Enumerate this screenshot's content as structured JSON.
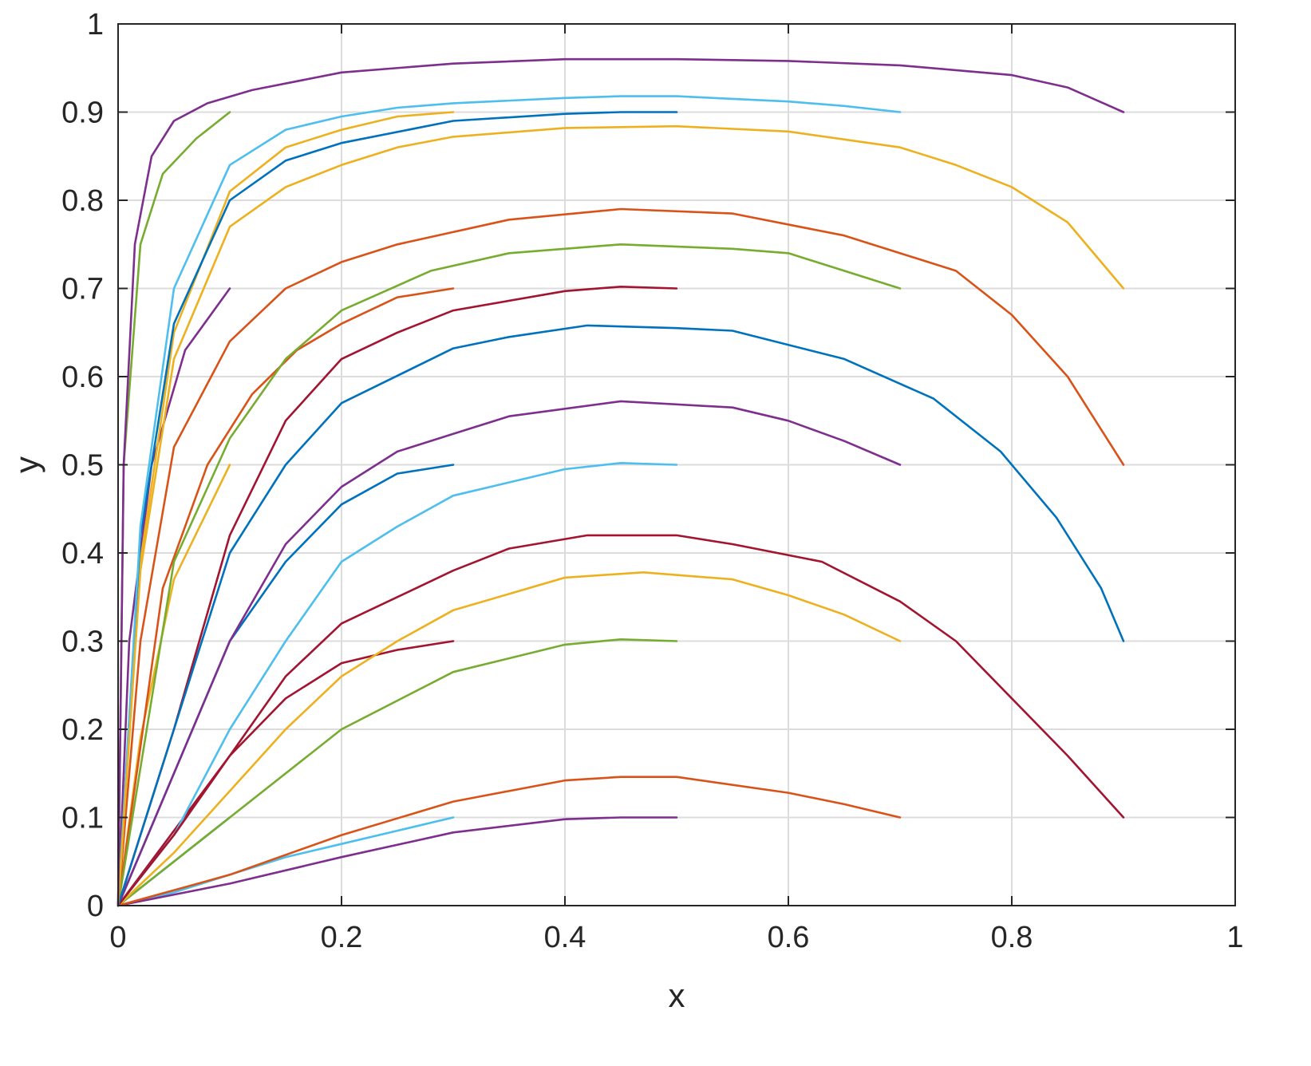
{
  "chart_data": {
    "type": "line",
    "xlabel": "x",
    "ylabel": "y",
    "xlim": [
      0,
      1
    ],
    "ylim": [
      0,
      1
    ],
    "xticks": [
      "0",
      "0.2",
      "0.4",
      "0.6",
      "0.8",
      "1"
    ],
    "yticks": [
      "0",
      "0.1",
      "0.2",
      "0.3",
      "0.4",
      "0.5",
      "0.6",
      "0.7",
      "0.8",
      "0.9",
      "1"
    ],
    "grid": true,
    "box": true,
    "series": [
      {
        "color": "#0072BD",
        "x": [
          0,
          0.1
        ],
        "y": [
          0,
          0.1
        ]
      },
      {
        "color": "#EDB120",
        "x": [
          0,
          0.02,
          0.05,
          0.1
        ],
        "y": [
          0,
          0.19,
          0.37,
          0.5
        ]
      },
      {
        "color": "#7E2F8E",
        "x": [
          0,
          0.01,
          0.03,
          0.06,
          0.1
        ],
        "y": [
          0,
          0.3,
          0.5,
          0.63,
          0.7
        ]
      },
      {
        "color": "#77AC30",
        "x": [
          0,
          0.005,
          0.02,
          0.04,
          0.07,
          0.1
        ],
        "y": [
          0,
          0.5,
          0.75,
          0.83,
          0.87,
          0.9
        ]
      },
      {
        "color": "#4DBEEE",
        "x": [
          0,
          0.05,
          0.1,
          0.15,
          0.2,
          0.25,
          0.3
        ],
        "y": [
          0,
          0.015,
          0.035,
          0.055,
          0.07,
          0.085,
          0.1
        ]
      },
      {
        "color": "#A2142F",
        "x": [
          0,
          0.05,
          0.1,
          0.15,
          0.2,
          0.25,
          0.3
        ],
        "y": [
          0,
          0.085,
          0.17,
          0.235,
          0.275,
          0.29,
          0.3
        ]
      },
      {
        "color": "#0072BD",
        "x": [
          0,
          0.05,
          0.1,
          0.15,
          0.2,
          0.25,
          0.3
        ],
        "y": [
          0,
          0.15,
          0.3,
          0.39,
          0.455,
          0.49,
          0.5
        ]
      },
      {
        "color": "#D95319",
        "x": [
          0,
          0.04,
          0.08,
          0.12,
          0.16,
          0.2,
          0.25,
          0.3
        ],
        "y": [
          0,
          0.36,
          0.5,
          0.58,
          0.63,
          0.66,
          0.69,
          0.7
        ]
      },
      {
        "color": "#EDB120",
        "x": [
          0,
          0.02,
          0.05,
          0.1,
          0.15,
          0.2,
          0.25,
          0.3
        ],
        "y": [
          0,
          0.39,
          0.65,
          0.81,
          0.86,
          0.88,
          0.895,
          0.9
        ]
      },
      {
        "color": "#7E2F8E",
        "x": [
          0,
          0.1,
          0.2,
          0.3,
          0.4,
          0.45,
          0.5
        ],
        "y": [
          0,
          0.025,
          0.055,
          0.083,
          0.098,
          0.1,
          0.1
        ]
      },
      {
        "color": "#77AC30",
        "x": [
          0,
          0.1,
          0.2,
          0.3,
          0.4,
          0.45,
          0.5
        ],
        "y": [
          0,
          0.1,
          0.2,
          0.265,
          0.296,
          0.302,
          0.3
        ]
      },
      {
        "color": "#4DBEEE",
        "x": [
          0,
          0.05,
          0.1,
          0.15,
          0.2,
          0.25,
          0.3,
          0.4,
          0.45,
          0.5
        ],
        "y": [
          0,
          0.08,
          0.2,
          0.3,
          0.39,
          0.43,
          0.465,
          0.495,
          0.502,
          0.5
        ]
      },
      {
        "color": "#A2142F",
        "x": [
          0,
          0.05,
          0.1,
          0.15,
          0.2,
          0.25,
          0.3,
          0.4,
          0.45,
          0.5
        ],
        "y": [
          0,
          0.2,
          0.42,
          0.55,
          0.62,
          0.65,
          0.675,
          0.697,
          0.702,
          0.7
        ]
      },
      {
        "color": "#0072BD",
        "x": [
          0,
          0.02,
          0.05,
          0.1,
          0.15,
          0.2,
          0.3,
          0.4,
          0.45,
          0.5
        ],
        "y": [
          0,
          0.42,
          0.66,
          0.8,
          0.845,
          0.865,
          0.89,
          0.898,
          0.9,
          0.9
        ]
      },
      {
        "color": "#D95319",
        "x": [
          0,
          0.1,
          0.2,
          0.3,
          0.4,
          0.45,
          0.5,
          0.6,
          0.65,
          0.7
        ],
        "y": [
          0,
          0.035,
          0.08,
          0.118,
          0.142,
          0.146,
          0.146,
          0.128,
          0.115,
          0.1
        ]
      },
      {
        "color": "#EDB120",
        "x": [
          0,
          0.05,
          0.1,
          0.15,
          0.2,
          0.25,
          0.3,
          0.4,
          0.47,
          0.55,
          0.6,
          0.65,
          0.7
        ],
        "y": [
          0,
          0.06,
          0.13,
          0.2,
          0.26,
          0.3,
          0.335,
          0.372,
          0.378,
          0.37,
          0.352,
          0.33,
          0.3
        ]
      },
      {
        "color": "#7E2F8E",
        "x": [
          0,
          0.05,
          0.1,
          0.15,
          0.2,
          0.25,
          0.3,
          0.35,
          0.45,
          0.55,
          0.6,
          0.65,
          0.7
        ],
        "y": [
          0,
          0.15,
          0.3,
          0.41,
          0.475,
          0.515,
          0.535,
          0.555,
          0.572,
          0.565,
          0.55,
          0.527,
          0.5
        ]
      },
      {
        "color": "#77AC30",
        "x": [
          0,
          0.05,
          0.1,
          0.15,
          0.2,
          0.28,
          0.35,
          0.45,
          0.55,
          0.6,
          0.65,
          0.7
        ],
        "y": [
          0,
          0.39,
          0.53,
          0.62,
          0.675,
          0.72,
          0.74,
          0.75,
          0.745,
          0.74,
          0.72,
          0.7
        ]
      },
      {
        "color": "#4DBEEE",
        "x": [
          0,
          0.02,
          0.05,
          0.1,
          0.15,
          0.2,
          0.25,
          0.3,
          0.4,
          0.45,
          0.5,
          0.6,
          0.65,
          0.7
        ],
        "y": [
          0,
          0.43,
          0.7,
          0.84,
          0.88,
          0.895,
          0.905,
          0.91,
          0.916,
          0.918,
          0.918,
          0.912,
          0.907,
          0.9
        ]
      },
      {
        "color": "#A2142F",
        "x": [
          0,
          0.05,
          0.1,
          0.15,
          0.2,
          0.3,
          0.35,
          0.42,
          0.5,
          0.55,
          0.63,
          0.7,
          0.75,
          0.8,
          0.85,
          0.9
        ],
        "y": [
          0,
          0.08,
          0.17,
          0.26,
          0.32,
          0.38,
          0.405,
          0.42,
          0.42,
          0.41,
          0.39,
          0.345,
          0.3,
          0.235,
          0.17,
          0.1
        ]
      },
      {
        "color": "#0072BD",
        "x": [
          0,
          0.05,
          0.1,
          0.15,
          0.2,
          0.3,
          0.35,
          0.42,
          0.5,
          0.55,
          0.65,
          0.73,
          0.79,
          0.84,
          0.88,
          0.9
        ],
        "y": [
          0,
          0.2,
          0.4,
          0.5,
          0.57,
          0.632,
          0.645,
          0.658,
          0.655,
          0.652,
          0.62,
          0.575,
          0.515,
          0.44,
          0.36,
          0.3
        ]
      },
      {
        "color": "#D95319",
        "x": [
          0,
          0.02,
          0.05,
          0.1,
          0.15,
          0.2,
          0.25,
          0.35,
          0.45,
          0.55,
          0.65,
          0.75,
          0.8,
          0.85,
          0.88,
          0.9
        ],
        "y": [
          0,
          0.3,
          0.52,
          0.64,
          0.7,
          0.73,
          0.75,
          0.778,
          0.79,
          0.785,
          0.76,
          0.72,
          0.67,
          0.6,
          0.54,
          0.5
        ]
      },
      {
        "color": "#EDB120",
        "x": [
          0,
          0.02,
          0.05,
          0.1,
          0.15,
          0.2,
          0.25,
          0.3,
          0.4,
          0.5,
          0.6,
          0.7,
          0.75,
          0.8,
          0.85,
          0.88,
          0.9
        ],
        "y": [
          0,
          0.38,
          0.62,
          0.77,
          0.815,
          0.84,
          0.86,
          0.872,
          0.882,
          0.884,
          0.878,
          0.86,
          0.84,
          0.815,
          0.775,
          0.73,
          0.7
        ]
      },
      {
        "color": "#7E2F8E",
        "x": [
          0,
          0.005,
          0.015,
          0.03,
          0.05,
          0.08,
          0.12,
          0.2,
          0.3,
          0.4,
          0.5,
          0.6,
          0.7,
          0.8,
          0.85,
          0.9
        ],
        "y": [
          0,
          0.5,
          0.75,
          0.85,
          0.89,
          0.91,
          0.925,
          0.945,
          0.955,
          0.96,
          0.96,
          0.958,
          0.953,
          0.942,
          0.928,
          0.9
        ]
      }
    ]
  }
}
